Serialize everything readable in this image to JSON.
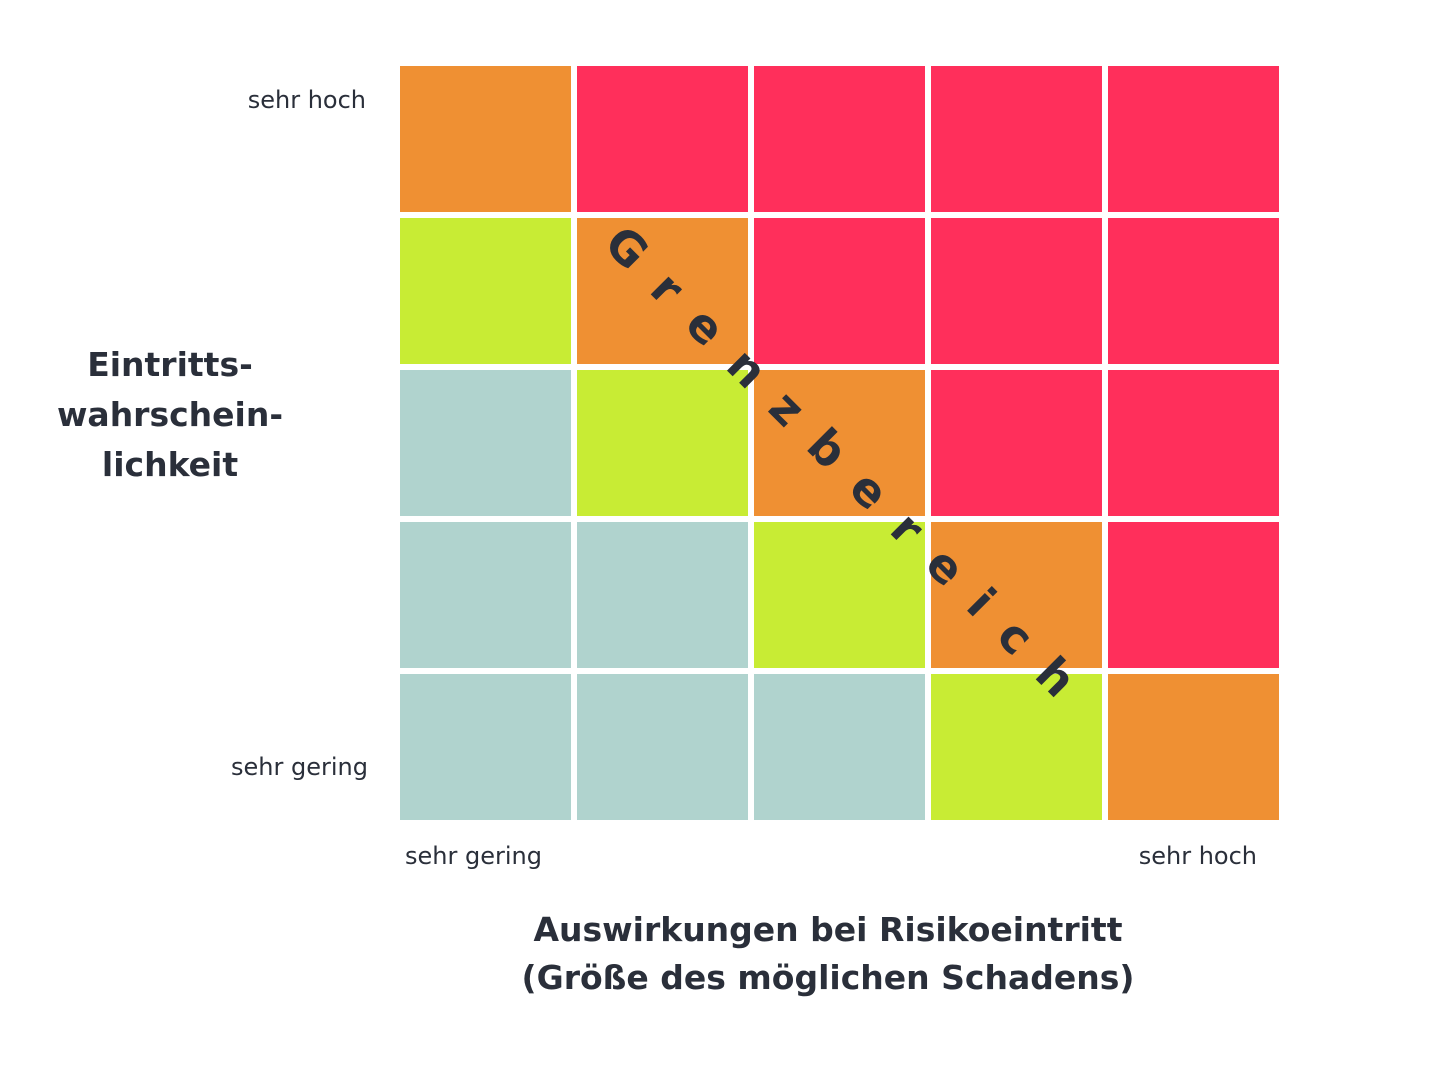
{
  "y_axis": {
    "title_lines": [
      "Eintritts-",
      "wahrschein-",
      "lichkeit"
    ],
    "tick_high": "sehr hoch",
    "tick_low": "sehr gering"
  },
  "x_axis": {
    "title_lines": [
      "Auswirkungen bei Risikoeintritt",
      "(Größe des möglichen Schadens)"
    ],
    "tick_low": "sehr gering",
    "tick_high": "sehr hoch"
  },
  "diagonal_label": "Grenzbereich",
  "colors": {
    "low": "#b0d3ce",
    "moderate": "#c8ec34",
    "border": "#ef9033",
    "high": "#ff2f5b"
  },
  "matrix": {
    "rows_top_to_bottom": [
      [
        "border",
        "high",
        "high",
        "high",
        "high"
      ],
      [
        "moderate",
        "border",
        "high",
        "high",
        "high"
      ],
      [
        "low",
        "moderate",
        "border",
        "high",
        "high"
      ],
      [
        "low",
        "low",
        "moderate",
        "border",
        "high"
      ],
      [
        "low",
        "low",
        "low",
        "moderate",
        "border"
      ]
    ]
  }
}
